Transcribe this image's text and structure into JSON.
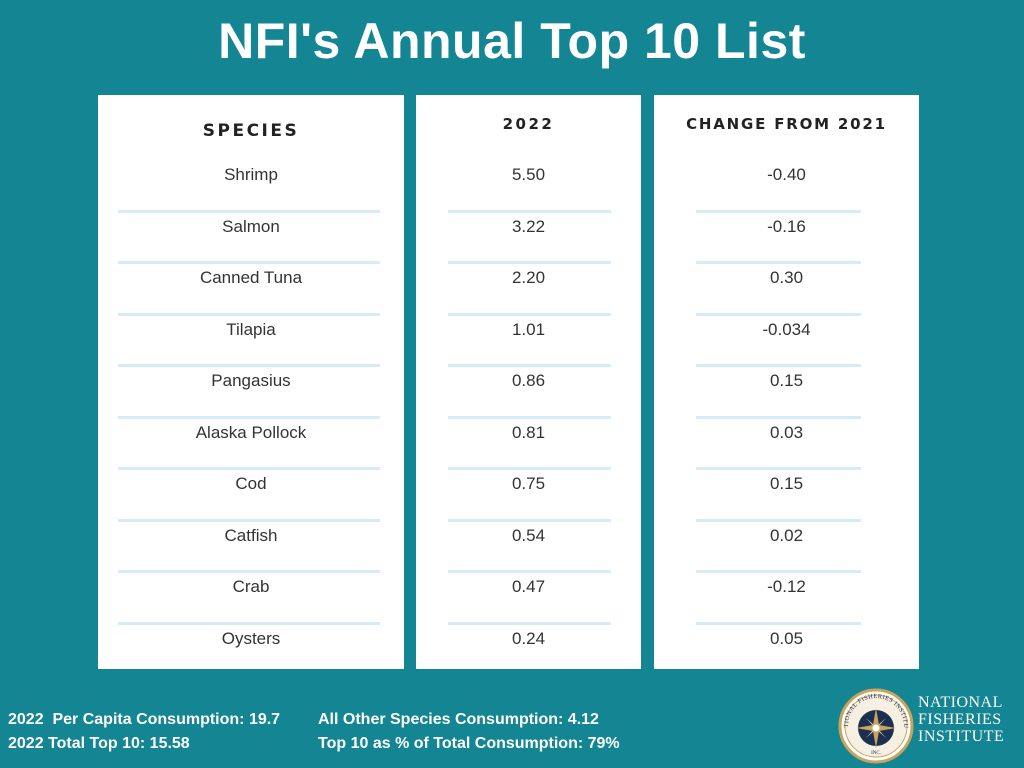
{
  "title": "NFI's Annual Top 10 List",
  "columns": {
    "species": "SPECIES",
    "year": "2022",
    "change": "CHANGE FROM 2021"
  },
  "rows": [
    {
      "species": "Shrimp",
      "value": "5.50",
      "change": "-0.40"
    },
    {
      "species": "Salmon",
      "value": "3.22",
      "change": "-0.16"
    },
    {
      "species": "Canned Tuna",
      "value": "2.20",
      "change": "0.30"
    },
    {
      "species": "Tilapia",
      "value": "1.01",
      "change": "-0.034"
    },
    {
      "species": "Pangasius",
      "value": "0.86",
      "change": "0.15"
    },
    {
      "species": "Alaska Pollock",
      "value": "0.81",
      "change": "0.03"
    },
    {
      "species": "Cod",
      "value": "0.75",
      "change": "0.15"
    },
    {
      "species": "Catfish",
      "value": "0.54",
      "change": "0.02"
    },
    {
      "species": "Crab",
      "value": "0.47",
      "change": "-0.12"
    },
    {
      "species": "Oysters",
      "value": "0.24",
      "change": "0.05"
    }
  ],
  "footer": {
    "per_capita": "2022  Per Capita Consumption: 19.7",
    "total_top10": "2022 Total Top 10: 15.58",
    "other_species": "All Other Species Consumption: 4.12",
    "top10_pct": "Top 10 as % of Total Consumption: 79%"
  },
  "logo": {
    "seal_text": "NATIONAL FISHERIES INSTITUTE",
    "seal_sub": "INC.",
    "line1": "NATIONAL",
    "line2": "FISHERIES",
    "line3": "INSTITUTE"
  },
  "colors": {
    "background": "#148592",
    "panel": "#ffffff",
    "rule": "#d3ecf8",
    "seal_gold": "#c9a45c",
    "seal_navy": "#1d2f4f"
  }
}
